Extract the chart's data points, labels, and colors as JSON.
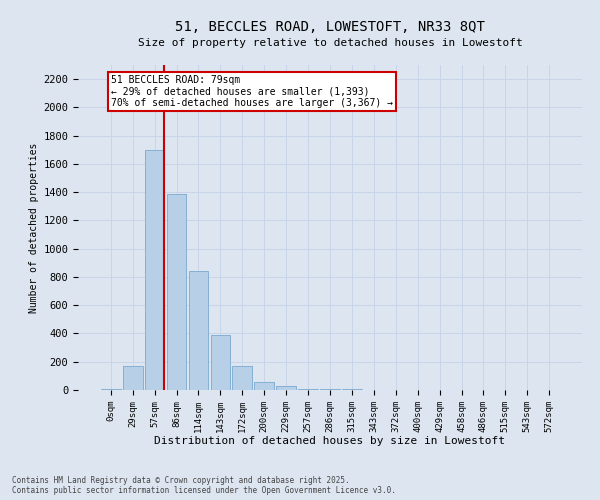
{
  "title": "51, BECCLES ROAD, LOWESTOFT, NR33 8QT",
  "subtitle": "Size of property relative to detached houses in Lowestoft",
  "xlabel": "Distribution of detached houses by size in Lowestoft",
  "ylabel": "Number of detached properties",
  "bar_labels": [
    "0sqm",
    "29sqm",
    "57sqm",
    "86sqm",
    "114sqm",
    "143sqm",
    "172sqm",
    "200sqm",
    "229sqm",
    "257sqm",
    "286sqm",
    "315sqm",
    "343sqm",
    "372sqm",
    "400sqm",
    "429sqm",
    "458sqm",
    "486sqm",
    "515sqm",
    "543sqm",
    "572sqm"
  ],
  "bar_values": [
    10,
    170,
    1700,
    1390,
    840,
    390,
    170,
    55,
    25,
    10,
    10,
    10,
    0,
    0,
    0,
    0,
    0,
    0,
    0,
    0,
    0
  ],
  "bar_color": "#b8cfe8",
  "bar_edge_color": "#7aaad0",
  "annotation_line1": "51 BECCLES ROAD: 79sqm",
  "annotation_line2": "← 29% of detached houses are smaller (1,393)",
  "annotation_line3": "70% of semi-detached houses are larger (3,367) →",
  "annotation_box_facecolor": "#ffffff",
  "annotation_box_edgecolor": "#cc0000",
  "vline_color": "#cc0000",
  "grid_color": "#c8d4e8",
  "background_color": "#dde6f0",
  "ylim": [
    0,
    2300
  ],
  "yticks": [
    0,
    200,
    400,
    600,
    800,
    1000,
    1200,
    1400,
    1600,
    1800,
    2000,
    2200
  ],
  "footnote1": "Contains HM Land Registry data © Crown copyright and database right 2025.",
  "footnote2": "Contains public sector information licensed under the Open Government Licence v3.0."
}
